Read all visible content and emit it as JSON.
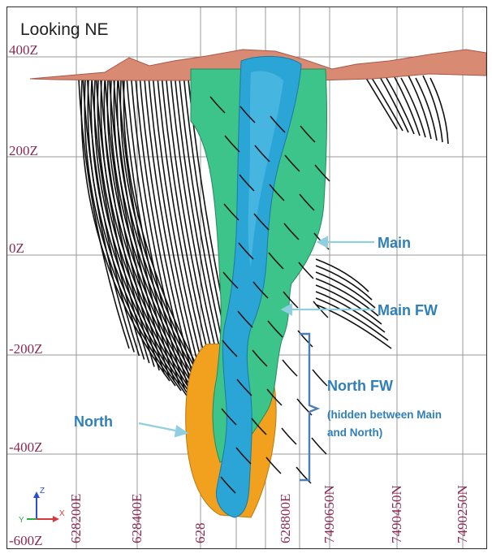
{
  "view": {
    "title": "Looking NE"
  },
  "elevation_labels": [
    "400Z",
    "200Z",
    "0Z",
    "-200Z",
    "-400Z",
    "-600Z"
  ],
  "grid_labels": [
    "628200E",
    "628400E",
    "628",
    "628800E",
    "7490650N",
    "7490450N",
    "7490250N"
  ],
  "callouts": {
    "main": "Main",
    "main_fw": "Main FW",
    "north_fw": "North FW",
    "north_fw_note_1": "(hidden between Main",
    "north_fw_note_2": "and North)",
    "north": "North"
  },
  "axis_triad": {
    "z": "Z",
    "x": "X",
    "y": "Y"
  },
  "colors": {
    "main_zone": "#2aa5d6",
    "main_fw_zone": "#3dc48a",
    "north_zone": "#f2a11f",
    "topography": "#d98a72",
    "callout": "#2f7fb9",
    "label": "#8a2a52",
    "drillhole": "#111111"
  }
}
